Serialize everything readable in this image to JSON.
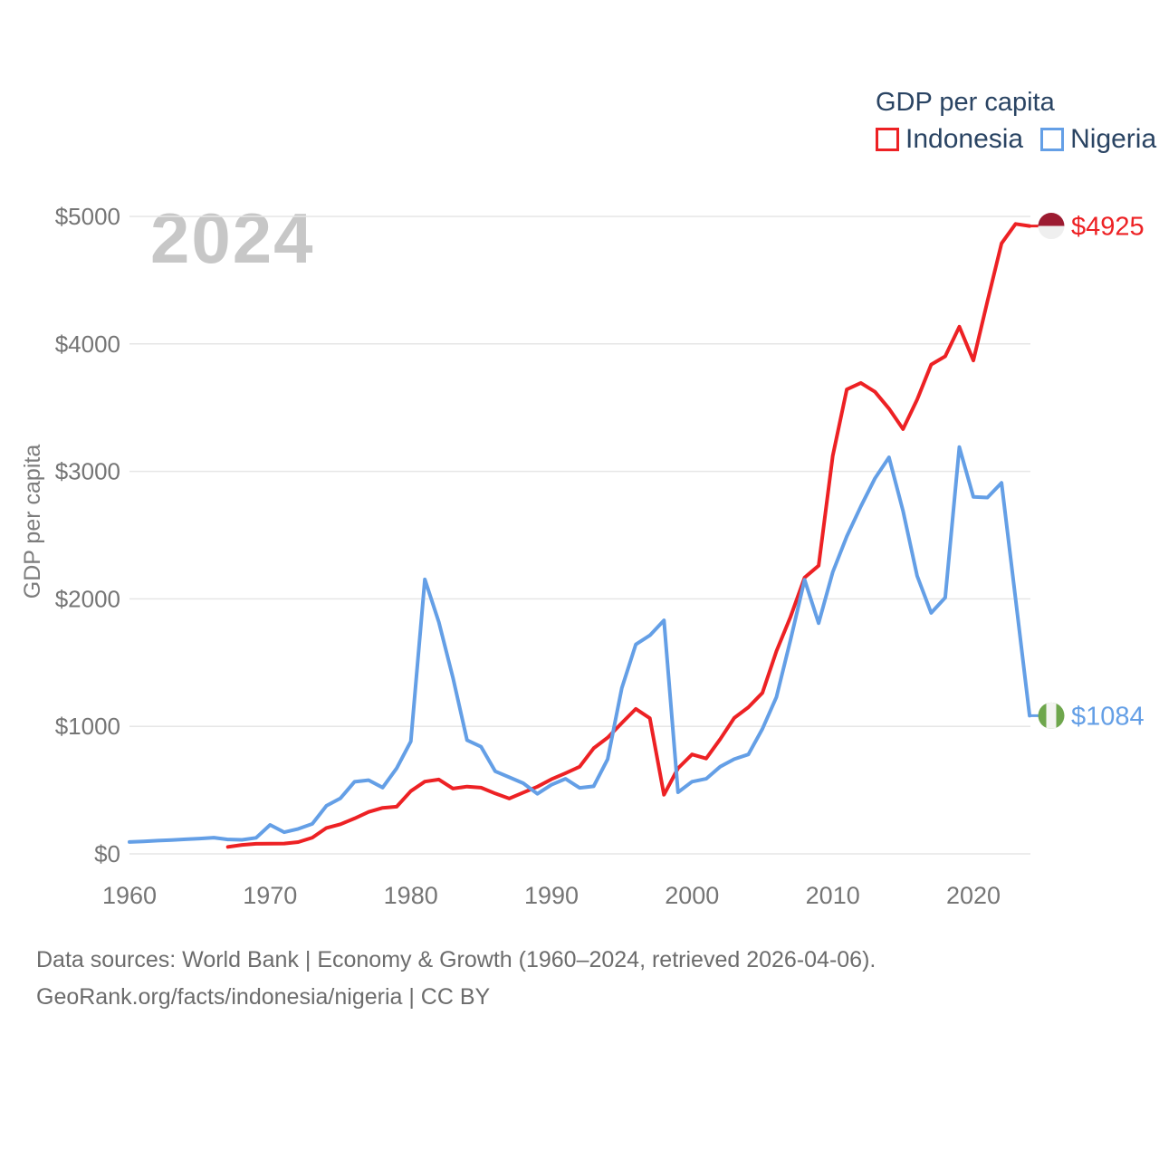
{
  "watermark": "2024",
  "legend": {
    "title": "GDP per capita",
    "items": [
      {
        "label": "Indonesia",
        "color": "#ed2124"
      },
      {
        "label": "Nigeria",
        "color": "#649fe6"
      }
    ]
  },
  "source": {
    "line1": "Data sources: World Bank | Economy & Growth (1960–2024, retrieved 2026-04-06).",
    "line2": "GeoRank.org/facts/indonesia/nigeria | CC BY"
  },
  "colors": {
    "indonesia": "#ed2124",
    "nigeria": "#649fe6",
    "grid": "#e6e6e6",
    "axis_text": "#757575",
    "axis_title_text": "#7d7d7d",
    "legend_text": "#2a4463",
    "watermark": "#c7c7c7",
    "source_text": "#6c6c6c",
    "background": "#ffffff",
    "indonesia_flag_top": "#9c1b31",
    "indonesia_flag_bottom": "#efefef",
    "nigeria_flag_green": "#6ea64c",
    "nigeria_flag_white": "#f4f4f2"
  },
  "chart_data": {
    "type": "line",
    "title": "GDP per capita",
    "xlabel": "",
    "ylabel": "GDP per capita",
    "xlim": [
      1960,
      2024
    ],
    "ylim": [
      0,
      5000
    ],
    "x_ticks": [
      1960,
      1970,
      1980,
      1990,
      2000,
      2010,
      2020
    ],
    "y_ticks": [
      0,
      1000,
      2000,
      3000,
      4000,
      5000
    ],
    "y_tick_prefix": "$",
    "grid": "horizontal",
    "legend_position": "top-right",
    "series": [
      {
        "name": "Indonesia",
        "color": "#ed2124",
        "flag": "indonesia",
        "end_label": "$4925",
        "end_value": 4925,
        "start_year": 1967,
        "end_year": 2024,
        "values": [
          55,
          70,
          79,
          80,
          81,
          92,
          127,
          203,
          232,
          278,
          329,
          361,
          370,
          492,
          567,
          583,
          512,
          528,
          519,
          474,
          434,
          481,
          527,
          585,
          633,
          683,
          828,
          912,
          1026,
          1137,
          1064,
          464,
          671,
          780,
          748,
          900,
          1066,
          1150,
          1263,
          1590,
          1860,
          2167,
          2261,
          3122,
          3643,
          3694,
          3624,
          3492,
          3332,
          3563,
          3838,
          3903,
          4135,
          3870,
          4334,
          4788,
          4941,
          4925
        ]
      },
      {
        "name": "Nigeria",
        "color": "#649fe6",
        "flag": "nigeria",
        "end_label": "$1084",
        "end_value": 1084,
        "start_year": 1960,
        "end_year": 2024,
        "values": [
          93,
          97,
          104,
          108,
          114,
          120,
          127,
          113,
          110,
          126,
          227,
          170,
          196,
          235,
          377,
          436,
          565,
          578,
          520,
          672,
          882,
          2153,
          1816,
          1380,
          892,
          840,
          648,
          601,
          554,
          471,
          542,
          589,
          518,
          530,
          743,
          1300,
          1643,
          1714,
          1832,
          483,
          566,
          589,
          684,
          743,
          780,
          980,
          1230,
          1680,
          2150,
          1810,
          2210,
          2490,
          2725,
          2945,
          3110,
          2690,
          2180,
          1890,
          2010,
          3190,
          2800,
          2795,
          2910,
          2000,
          1084
        ]
      }
    ]
  }
}
